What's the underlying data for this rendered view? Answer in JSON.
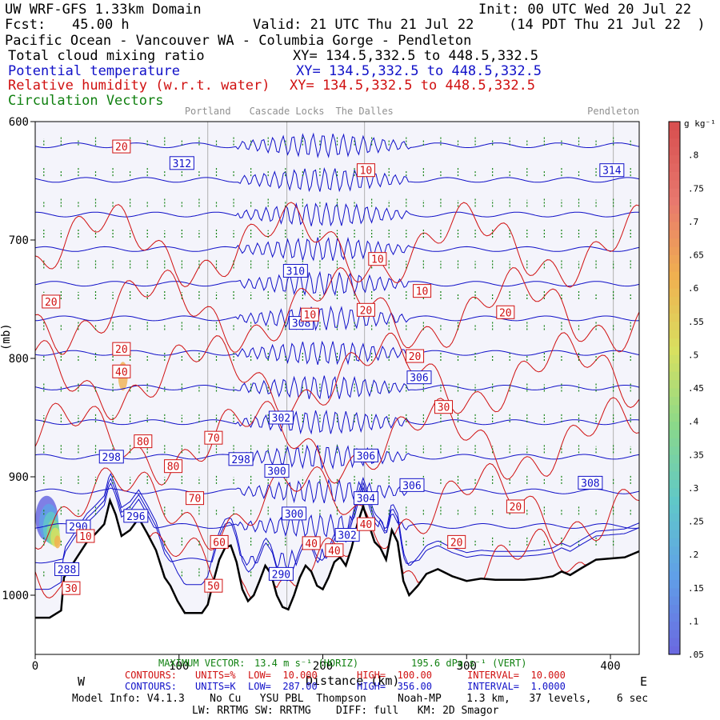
{
  "header": {
    "model": "UW WRF-GFS 1.33km Domain",
    "init": "Init: 00 UTC Wed 20 Jul 22",
    "fcst_label": "Fcst:",
    "fcst_value": "45.00 h",
    "valid": "Valid: 21 UTC Thu 21 Jul 22",
    "valid_local": "(14 PDT Thu 21 Jul 22  )",
    "region": "Pacific Ocean - Vancouver WA - Columbia Gorge - Pendleton",
    "field1": "Total cloud mixing ratio",
    "field1_xy": "XY= 134.5,332.5 to 448.5,332.5",
    "field2": "Potential temperature",
    "field2_xy": "XY= 134.5,332.5 to 448.5,332.5",
    "field3": "Relative humidity (w.r.t. water)",
    "field3_xy": "XY= 134.5,332.5 to 448.5,332.5",
    "field4": "Circulation Vectors"
  },
  "colors": {
    "theta": "#1010c8",
    "rh": "#d01010",
    "vectors": "#108010",
    "terrain": "#000000",
    "plot_bg": "#f4f4fb",
    "location_lines": "#b0b0b0"
  },
  "chart_data": {
    "type": "contour-cross-section",
    "x_axis": {
      "range": [
        0,
        420
      ],
      "ticks": [
        0,
        100,
        200,
        300,
        400
      ],
      "tick_labels": [
        "0",
        "100",
        "200",
        "300",
        "400"
      ],
      "label": "Distance (km)",
      "left_label": "W",
      "right_label": "E"
    },
    "y_axis": {
      "range": [
        1050,
        600
      ],
      "ticks": [
        600,
        700,
        800,
        900,
        1000
      ],
      "tick_labels": [
        "600",
        "700",
        "800",
        "900",
        "1000"
      ],
      "label_fragment": "(mb)"
    },
    "locations": [
      {
        "name": "Portland",
        "x": 120
      },
      {
        "name": "Cascade Locks",
        "x": 175
      },
      {
        "name": "The Dalles",
        "x": 229
      },
      {
        "name": "Pendleton",
        "x": 402
      }
    ],
    "theta_levels": [
      288,
      290,
      292,
      294,
      296,
      298,
      300,
      302,
      304,
      306,
      308,
      310,
      312,
      314
    ],
    "theta_labels": [
      {
        "text": "312",
        "x": 102,
        "p": 635
      },
      {
        "text": "314",
        "x": 401,
        "p": 641
      },
      {
        "text": "310",
        "x": 181,
        "p": 726
      },
      {
        "text": "308",
        "x": 185,
        "p": 770
      },
      {
        "text": "306",
        "x": 267,
        "p": 816
      },
      {
        "text": "302",
        "x": 171,
        "p": 850
      },
      {
        "text": "298",
        "x": 53,
        "p": 883
      },
      {
        "text": "298",
        "x": 143,
        "p": 885
      },
      {
        "text": "300",
        "x": 168,
        "p": 895
      },
      {
        "text": "306",
        "x": 230,
        "p": 882
      },
      {
        "text": "306",
        "x": 262,
        "p": 907
      },
      {
        "text": "308",
        "x": 386,
        "p": 905
      },
      {
        "text": "304",
        "x": 230,
        "p": 918
      },
      {
        "text": "300",
        "x": 180,
        "p": 931
      },
      {
        "text": "302",
        "x": 217,
        "p": 949
      },
      {
        "text": "296",
        "x": 70,
        "p": 933
      },
      {
        "text": "290",
        "x": 30,
        "p": 942
      },
      {
        "text": "288",
        "x": 22,
        "p": 978
      },
      {
        "text": "290",
        "x": 171,
        "p": 982
      }
    ],
    "rh_levels": [
      10,
      20,
      30,
      40,
      50,
      60,
      70,
      80,
      90,
      100
    ],
    "rh_labels": [
      {
        "text": "20",
        "x": 60,
        "p": 621
      },
      {
        "text": "10",
        "x": 230,
        "p": 641
      },
      {
        "text": "10",
        "x": 238,
        "p": 716
      },
      {
        "text": "10",
        "x": 269,
        "p": 743
      },
      {
        "text": "20",
        "x": 11,
        "p": 752
      },
      {
        "text": "10",
        "x": 191,
        "p": 763
      },
      {
        "text": "20",
        "x": 230,
        "p": 759
      },
      {
        "text": "20",
        "x": 327,
        "p": 761
      },
      {
        "text": "20",
        "x": 60,
        "p": 792
      },
      {
        "text": "20",
        "x": 264,
        "p": 798
      },
      {
        "text": "40",
        "x": 60,
        "p": 811
      },
      {
        "text": "30",
        "x": 284,
        "p": 841
      },
      {
        "text": "70",
        "x": 124,
        "p": 867
      },
      {
        "text": "80",
        "x": 75,
        "p": 870
      },
      {
        "text": "80",
        "x": 96,
        "p": 891
      },
      {
        "text": "70",
        "x": 111,
        "p": 918
      },
      {
        "text": "20",
        "x": 334,
        "p": 925
      },
      {
        "text": "10",
        "x": 35,
        "p": 950
      },
      {
        "text": "40",
        "x": 230,
        "p": 940
      },
      {
        "text": "60",
        "x": 128,
        "p": 955
      },
      {
        "text": "40",
        "x": 192,
        "p": 956
      },
      {
        "text": "40",
        "x": 208,
        "p": 962
      },
      {
        "text": "20",
        "x": 293,
        "p": 955
      },
      {
        "text": "50",
        "x": 124,
        "p": 992
      },
      {
        "text": "30",
        "x": 25,
        "p": 994
      }
    ],
    "terrain": [
      [
        0,
        1019
      ],
      [
        10,
        1019
      ],
      [
        18,
        1013
      ],
      [
        20,
        985
      ],
      [
        28,
        970
      ],
      [
        36,
        955
      ],
      [
        42,
        948
      ],
      [
        48,
        940
      ],
      [
        52,
        920
      ],
      [
        56,
        932
      ],
      [
        60,
        950
      ],
      [
        66,
        945
      ],
      [
        72,
        935
      ],
      [
        78,
        948
      ],
      [
        84,
        962
      ],
      [
        90,
        985
      ],
      [
        94,
        992
      ],
      [
        99,
        1005
      ],
      [
        104,
        1015
      ],
      [
        116,
        1015
      ],
      [
        120,
        1008
      ],
      [
        124,
        988
      ],
      [
        128,
        970
      ],
      [
        132,
        960
      ],
      [
        136,
        958
      ],
      [
        140,
        972
      ],
      [
        144,
        995
      ],
      [
        148,
        1005
      ],
      [
        152,
        1000
      ],
      [
        156,
        988
      ],
      [
        160,
        975
      ],
      [
        164,
        982
      ],
      [
        168,
        1000
      ],
      [
        172,
        1010
      ],
      [
        176,
        1012
      ],
      [
        180,
        1000
      ],
      [
        184,
        985
      ],
      [
        188,
        975
      ],
      [
        192,
        980
      ],
      [
        196,
        992
      ],
      [
        200,
        995
      ],
      [
        204,
        985
      ],
      [
        208,
        972
      ],
      [
        212,
        968
      ],
      [
        216,
        975
      ],
      [
        220,
        960
      ],
      [
        224,
        940
      ],
      [
        228,
        925
      ],
      [
        232,
        940
      ],
      [
        236,
        955
      ],
      [
        240,
        960
      ],
      [
        244,
        970
      ],
      [
        248,
        945
      ],
      [
        252,
        955
      ],
      [
        256,
        988
      ],
      [
        260,
        1000
      ],
      [
        266,
        992
      ],
      [
        272,
        982
      ],
      [
        280,
        978
      ],
      [
        290,
        984
      ],
      [
        300,
        988
      ],
      [
        310,
        986
      ],
      [
        320,
        987
      ],
      [
        330,
        987
      ],
      [
        340,
        987
      ],
      [
        350,
        986
      ],
      [
        360,
        984
      ],
      [
        366,
        980
      ],
      [
        372,
        983
      ],
      [
        380,
        977
      ],
      [
        390,
        970
      ],
      [
        400,
        969
      ],
      [
        410,
        968
      ],
      [
        420,
        963
      ]
    ],
    "cloud_colorbar": {
      "unit": "g kg⁻¹",
      "min": 0.05,
      "max": 0.85,
      "tick_labels": [
        ".05",
        ".1",
        ".15",
        ".2",
        ".25",
        ".3",
        ".35",
        ".4",
        ".45",
        ".5",
        ".55",
        ".6",
        ".65",
        ".7",
        ".75",
        ".8"
      ]
    },
    "vectors": {
      "max_vector_label": "MAXIMUM VECTOR:",
      "max_horiz": "13.4 m s⁻¹ (HORIZ)",
      "max_vert": "195.6 dPa s⁻¹ (VERT)"
    }
  },
  "footer": {
    "contours_label": "CONTOURS:",
    "rh_units": "UNITS=%",
    "rh_low": "LOW=  10.000",
    "rh_high": "HIGH=  100.00",
    "rh_interval": "INTERVAL=  10.000",
    "theta_units": "UNITS=K",
    "theta_low": "LOW=  287.00",
    "theta_high": "HIGH=  356.00",
    "theta_interval": "INTERVAL=  1.0000",
    "model_info": "Model Info: V4.1.3    No Cu   YSU PBL  Thompson     Noah-MP    1.3 km,   37 levels,    6 sec",
    "model_info2": "LW: RRTMG SW: RRTMG    DIFF: full   KM: 2D Smagor"
  }
}
